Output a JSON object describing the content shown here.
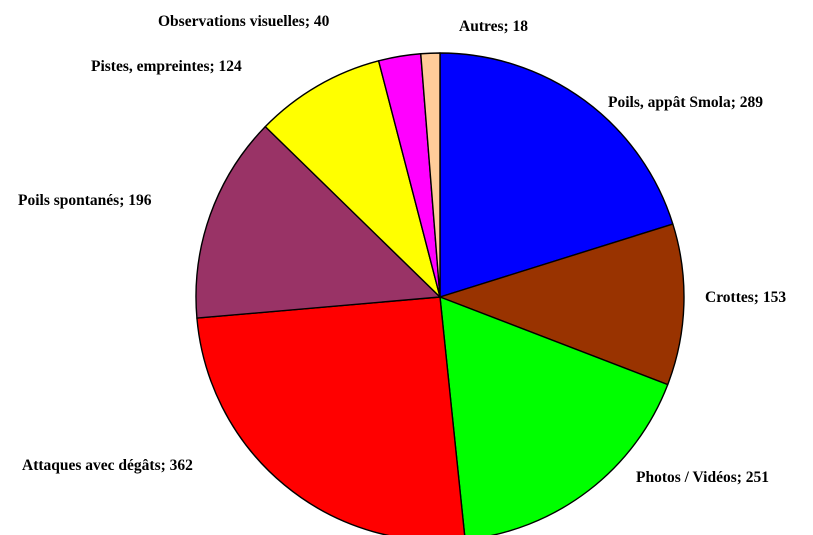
{
  "chart_data": {
    "type": "pie",
    "title": "",
    "labels": [
      "Poils, appât Smola",
      "Crottes",
      "Photos / Vidéos",
      "Attaques avec dégâts",
      "Poils spontanés",
      "Pistes, empreintes",
      "Observations visuelles",
      "Autres"
    ],
    "values": [
      289,
      153,
      251,
      362,
      196,
      124,
      40,
      18
    ],
    "colors": [
      "#0000ff",
      "#993300",
      "#00ff00",
      "#ff0000",
      "#993366",
      "#ffff00",
      "#ff00ff",
      "#ffcc99"
    ],
    "data_labels": [
      "Poils, appât Smola; 289",
      "Crottes; 153",
      "Photos / Vidéos; 251",
      "Attaques avec dégâts; 362",
      "Poils spontanés; 196",
      "Pistes, empreintes; 124",
      "Observations visuelles; 40",
      "Autres; 18"
    ],
    "start_angle": "12 o'clock",
    "direction": "clockwise",
    "legend": "none"
  }
}
